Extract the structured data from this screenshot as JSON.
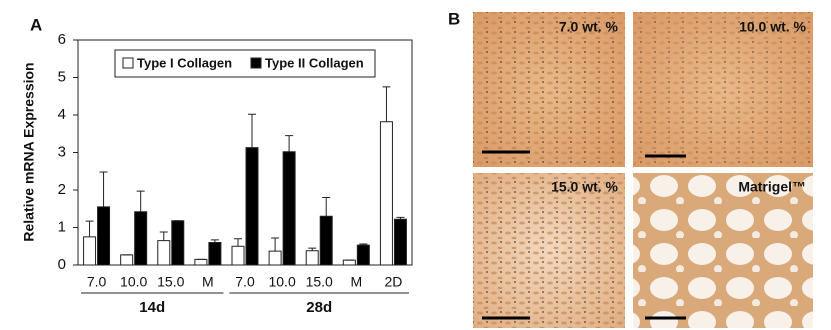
{
  "chart_data": {
    "type": "bar",
    "panel_label": "A",
    "y_label": "Relative mRNA Expression",
    "groups": [
      {
        "name": "14d",
        "categories": [
          "7.0",
          "10.0",
          "15.0",
          "M"
        ]
      },
      {
        "name": "28d",
        "categories": [
          "7.0",
          "10.0",
          "15.0",
          "M",
          "2D"
        ]
      }
    ],
    "series": [
      {
        "name": "Type I Collagen",
        "color": "#ffffff",
        "values": [
          0.75,
          0.27,
          0.65,
          0.15,
          0.5,
          0.37,
          0.38,
          0.13,
          3.82
        ],
        "errors": [
          0.42,
          0,
          0.23,
          0,
          0.2,
          0.35,
          0.07,
          0,
          0.93
        ]
      },
      {
        "name": "Type II Collagen",
        "color": "#000000",
        "values": [
          1.55,
          1.42,
          1.18,
          0.6,
          3.13,
          3.02,
          1.3,
          0.53,
          1.22
        ],
        "errors": [
          0.93,
          0.55,
          0,
          0.07,
          0.89,
          0.43,
          0.5,
          0.03,
          0.05
        ]
      }
    ],
    "ylim": [
      0,
      6
    ],
    "yticks": [
      0,
      1,
      2,
      3,
      4,
      5,
      6
    ]
  },
  "panel_b": {
    "label": "B",
    "images": [
      {
        "caption": "7.0 wt. %"
      },
      {
        "caption": "10.0 wt. %"
      },
      {
        "caption": "15.0 wt. %"
      },
      {
        "caption": "Matrigel™"
      }
    ]
  }
}
